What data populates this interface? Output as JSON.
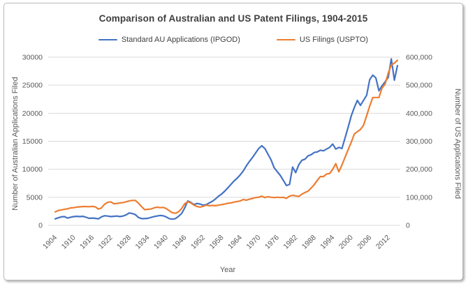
{
  "figure": {
    "title": "Comparison of Australian and US Patent Filings, 1904-2015",
    "x_axis_label": "Year",
    "left_axis_label": "Number of Australian Applications Filed",
    "right_axis_label": "Number of US Applications Filed"
  },
  "colors": {
    "au_series": "#4472C4",
    "us_series": "#ED7D31",
    "gridline": "#D9D9D9",
    "tick_text": "#595959",
    "title_text": "#3F3F3F"
  },
  "chart_data": {
    "type": "line",
    "title": "Comparison of Australian and US Patent Filings, 1904-2015",
    "xlabel": "Year",
    "grid": true,
    "legend_position": "top",
    "x_start_year": 1904,
    "x_end_year": 2015,
    "x_tick_labels": [
      1904,
      1910,
      1916,
      1922,
      1928,
      1934,
      1940,
      1946,
      1952,
      1958,
      1964,
      1970,
      1976,
      1982,
      1988,
      1994,
      2000,
      2006,
      2012
    ],
    "left_axis": {
      "label": "Number of Australian Applications Filed",
      "range": [
        0,
        30000
      ],
      "ticks": [
        0,
        5000,
        10000,
        15000,
        20000,
        25000,
        30000
      ],
      "tick_format": "plain"
    },
    "right_axis": {
      "label": "Number of US Applications Filed",
      "range": [
        0,
        600000
      ],
      "ticks": [
        0,
        100000,
        200000,
        300000,
        400000,
        500000,
        600000
      ],
      "tick_format": "comma"
    },
    "series": [
      {
        "name": "Standard AU Applications (IPGOD)",
        "axis": "left",
        "color": "#4472C4",
        "values": [
          1150,
          1350,
          1500,
          1550,
          1300,
          1450,
          1550,
          1600,
          1550,
          1600,
          1450,
          1250,
          1300,
          1250,
          1150,
          1500,
          1700,
          1650,
          1550,
          1600,
          1650,
          1550,
          1650,
          1850,
          2200,
          2100,
          1900,
          1400,
          1200,
          1200,
          1250,
          1400,
          1550,
          1650,
          1750,
          1700,
          1500,
          1200,
          1100,
          1200,
          1600,
          2100,
          3100,
          4350,
          4100,
          3700,
          3900,
          3800,
          3600,
          3700,
          4000,
          4300,
          4700,
          5200,
          5600,
          6100,
          6700,
          7300,
          7900,
          8400,
          9000,
          9700,
          10600,
          11400,
          12100,
          12900,
          13700,
          14200,
          13700,
          12700,
          11700,
          10300,
          9600,
          8900,
          8000,
          7100,
          7300,
          10400,
          9400,
          10800,
          11600,
          11800,
          12400,
          12600,
          13000,
          13100,
          13400,
          13300,
          13600,
          13900,
          14500,
          13600,
          13900,
          13700,
          15600,
          17500,
          19500,
          21000,
          22300,
          21400,
          22300,
          23200,
          26000,
          26800,
          26300,
          24000,
          24900,
          25600,
          26400,
          29700,
          25900,
          28500
        ]
      },
      {
        "name": "US Filings (USPTO)",
        "axis": "right",
        "color": "#ED7D31",
        "values": [
          48000,
          53000,
          55000,
          57000,
          59000,
          62000,
          63000,
          65000,
          66000,
          67000,
          67000,
          66500,
          67500,
          66000,
          58000,
          62000,
          75000,
          82000,
          84000,
          77000,
          78000,
          80000,
          81000,
          84000,
          87000,
          89000,
          89000,
          79000,
          67000,
          56000,
          57000,
          58000,
          62000,
          65000,
          63000,
          64000,
          60000,
          52000,
          45000,
          43000,
          48000,
          60000,
          77000,
          84000,
          80000,
          72000,
          67000,
          65000,
          68000,
          72000,
          70000,
          71000,
          70000,
          72000,
          74000,
          76000,
          79000,
          80000,
          83000,
          85000,
          87000,
          92000,
          90000,
          93000,
          96000,
          99000,
          100000,
          104000,
          99000,
          102000,
          100000,
          99000,
          100000,
          99000,
          100000,
          96000,
          104000,
          107000,
          105000,
          103000,
          111000,
          117000,
          122000,
          133000,
          145000,
          160000,
          174000,
          174000,
          183000,
          185000,
          200000,
          220000,
          191000,
          215000,
          243000,
          270000,
          296000,
          326000,
          334000,
          342000,
          357000,
          391000,
          426000,
          456000,
          456000,
          456000,
          490000,
          504000,
          543000,
          572000,
          579000,
          589000
        ]
      }
    ]
  }
}
